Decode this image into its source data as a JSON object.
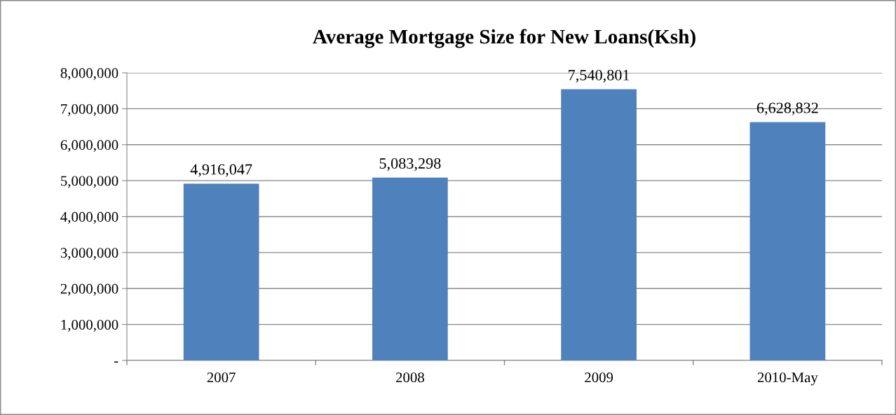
{
  "chart_data": {
    "type": "bar",
    "title": "Average Mortgage Size for New Loans(Ksh)",
    "categories": [
      "2007",
      "2008",
      "2009",
      "2010-May"
    ],
    "values": [
      4916047,
      5083298,
      7540801,
      6628832
    ],
    "color": "#4f81bd",
    "ylim": [
      0,
      8000000
    ],
    "yticks": [
      {
        "value": 0,
        "label": "-"
      },
      {
        "value": 1000000,
        "label": "1,000,000"
      },
      {
        "value": 2000000,
        "label": "2,000,000"
      },
      {
        "value": 3000000,
        "label": "3,000,000"
      },
      {
        "value": 4000000,
        "label": "4,000,000"
      },
      {
        "value": 5000000,
        "label": "5,000,000"
      },
      {
        "value": 6000000,
        "label": "6,000,000"
      },
      {
        "value": 7000000,
        "label": "7,000,000"
      },
      {
        "value": 8000000,
        "label": "8,000,000"
      }
    ],
    "grid": "y",
    "value_labels": [
      "4,916,047",
      "5,083,298",
      "7,540,801",
      "6,628,832"
    ]
  }
}
